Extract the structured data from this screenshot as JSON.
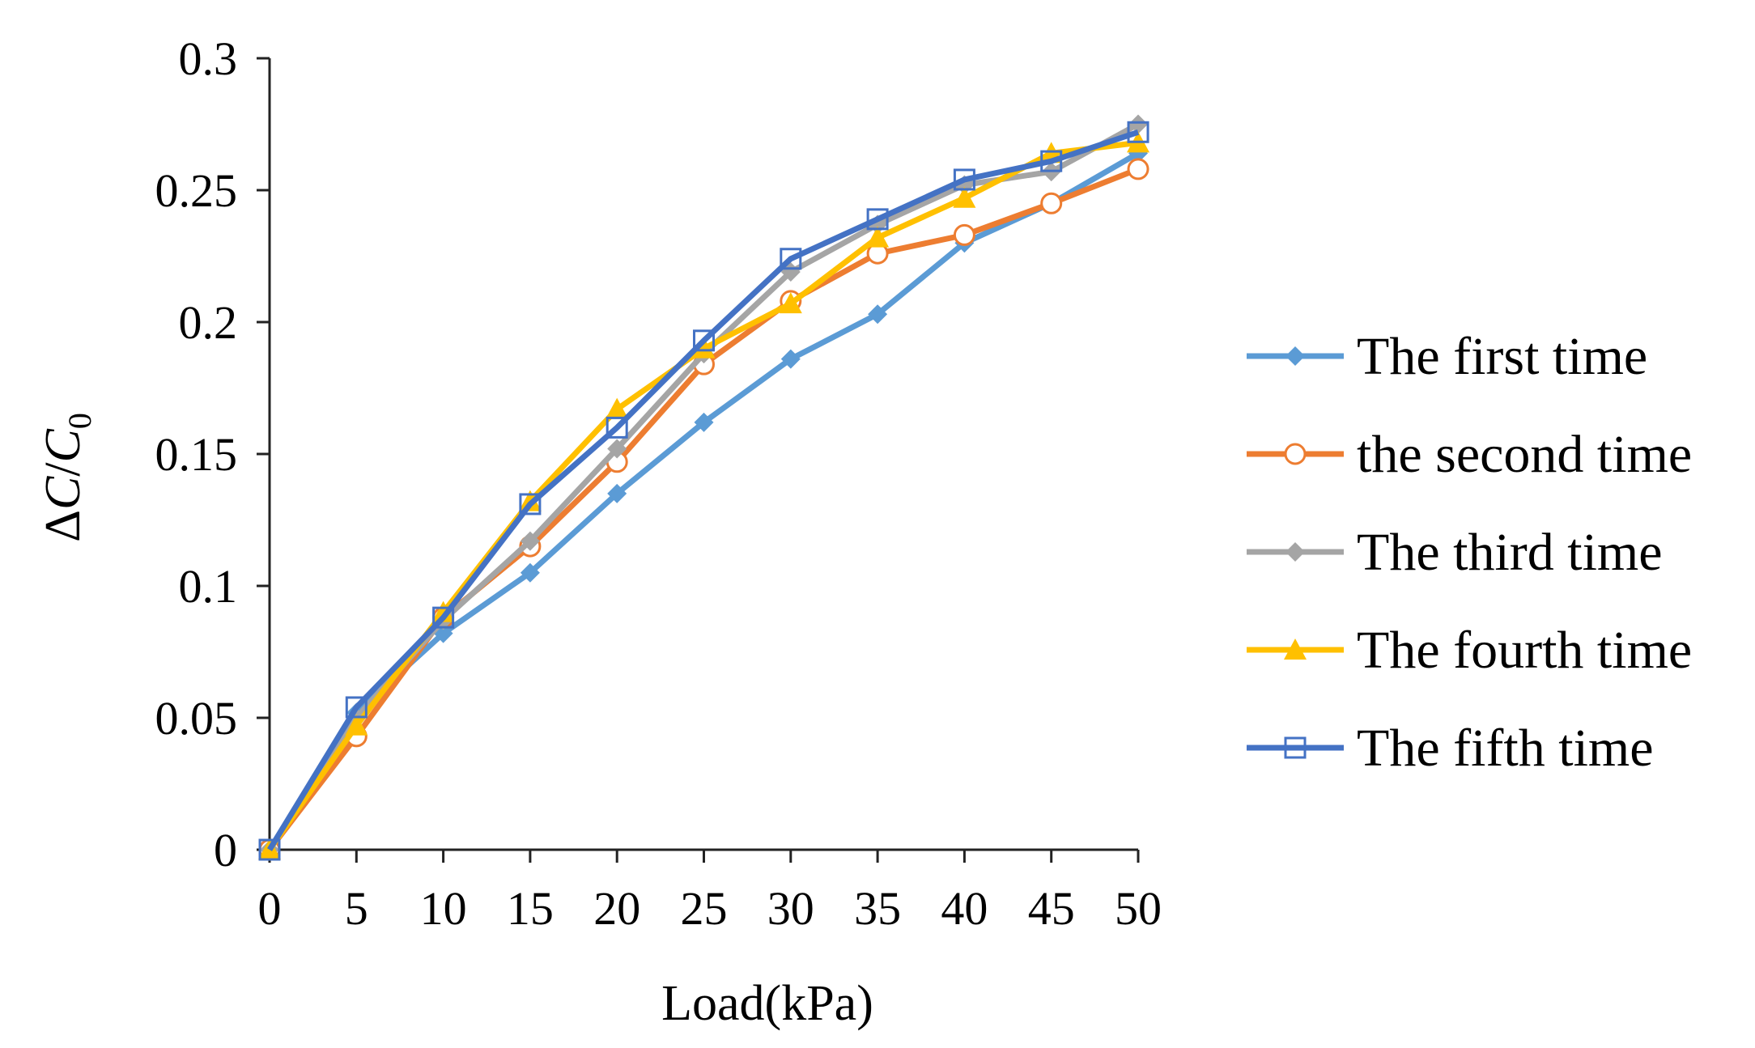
{
  "chart_data": {
    "type": "line",
    "title": "",
    "xlabel": "Load(kPa)",
    "ylabel": {
      "delta": "Δ",
      "c": "C",
      "sep": "/",
      "c0": "C",
      "sub": "0"
    },
    "x": [
      0,
      5,
      10,
      15,
      20,
      25,
      30,
      35,
      40,
      45,
      50
    ],
    "x_ticks": [
      "0",
      "5",
      "10",
      "15",
      "20",
      "25",
      "30",
      "35",
      "40",
      "45",
      "50"
    ],
    "y_ticks": [
      "0",
      "0.05",
      "0.1",
      "0.15",
      "0.2",
      "0.25",
      "0.3"
    ],
    "xlim": [
      0,
      50
    ],
    "ylim": [
      0,
      0.3
    ],
    "grid": false,
    "legend_position": "right",
    "series": [
      {
        "name": "The first time",
        "color": "#5b9bd5",
        "marker": "diamond",
        "values": [
          0,
          0.052,
          0.082,
          0.105,
          0.135,
          0.162,
          0.186,
          0.203,
          0.23,
          0.245,
          0.264
        ]
      },
      {
        "name": "the second time",
        "color": "#ed7d31",
        "marker": "circle-open",
        "values": [
          0,
          0.043,
          0.088,
          0.115,
          0.147,
          0.184,
          0.208,
          0.226,
          0.233,
          0.245,
          0.258
        ]
      },
      {
        "name": " The third time",
        "color": "#a5a5a5",
        "marker": "diamond",
        "values": [
          0,
          0.05,
          0.087,
          0.117,
          0.152,
          0.188,
          0.219,
          0.237,
          0.252,
          0.257,
          0.275
        ]
      },
      {
        "name": "The fourth time",
        "color": "#ffc000",
        "marker": "triangle",
        "values": [
          0,
          0.047,
          0.09,
          0.132,
          0.167,
          0.19,
          0.207,
          0.232,
          0.247,
          0.264,
          0.268
        ]
      },
      {
        "name": "The fifth time",
        "color": "#4472c4",
        "marker": "square-open",
        "values": [
          0,
          0.054,
          0.088,
          0.131,
          0.16,
          0.193,
          0.224,
          0.239,
          0.254,
          0.261,
          0.272
        ]
      }
    ]
  }
}
